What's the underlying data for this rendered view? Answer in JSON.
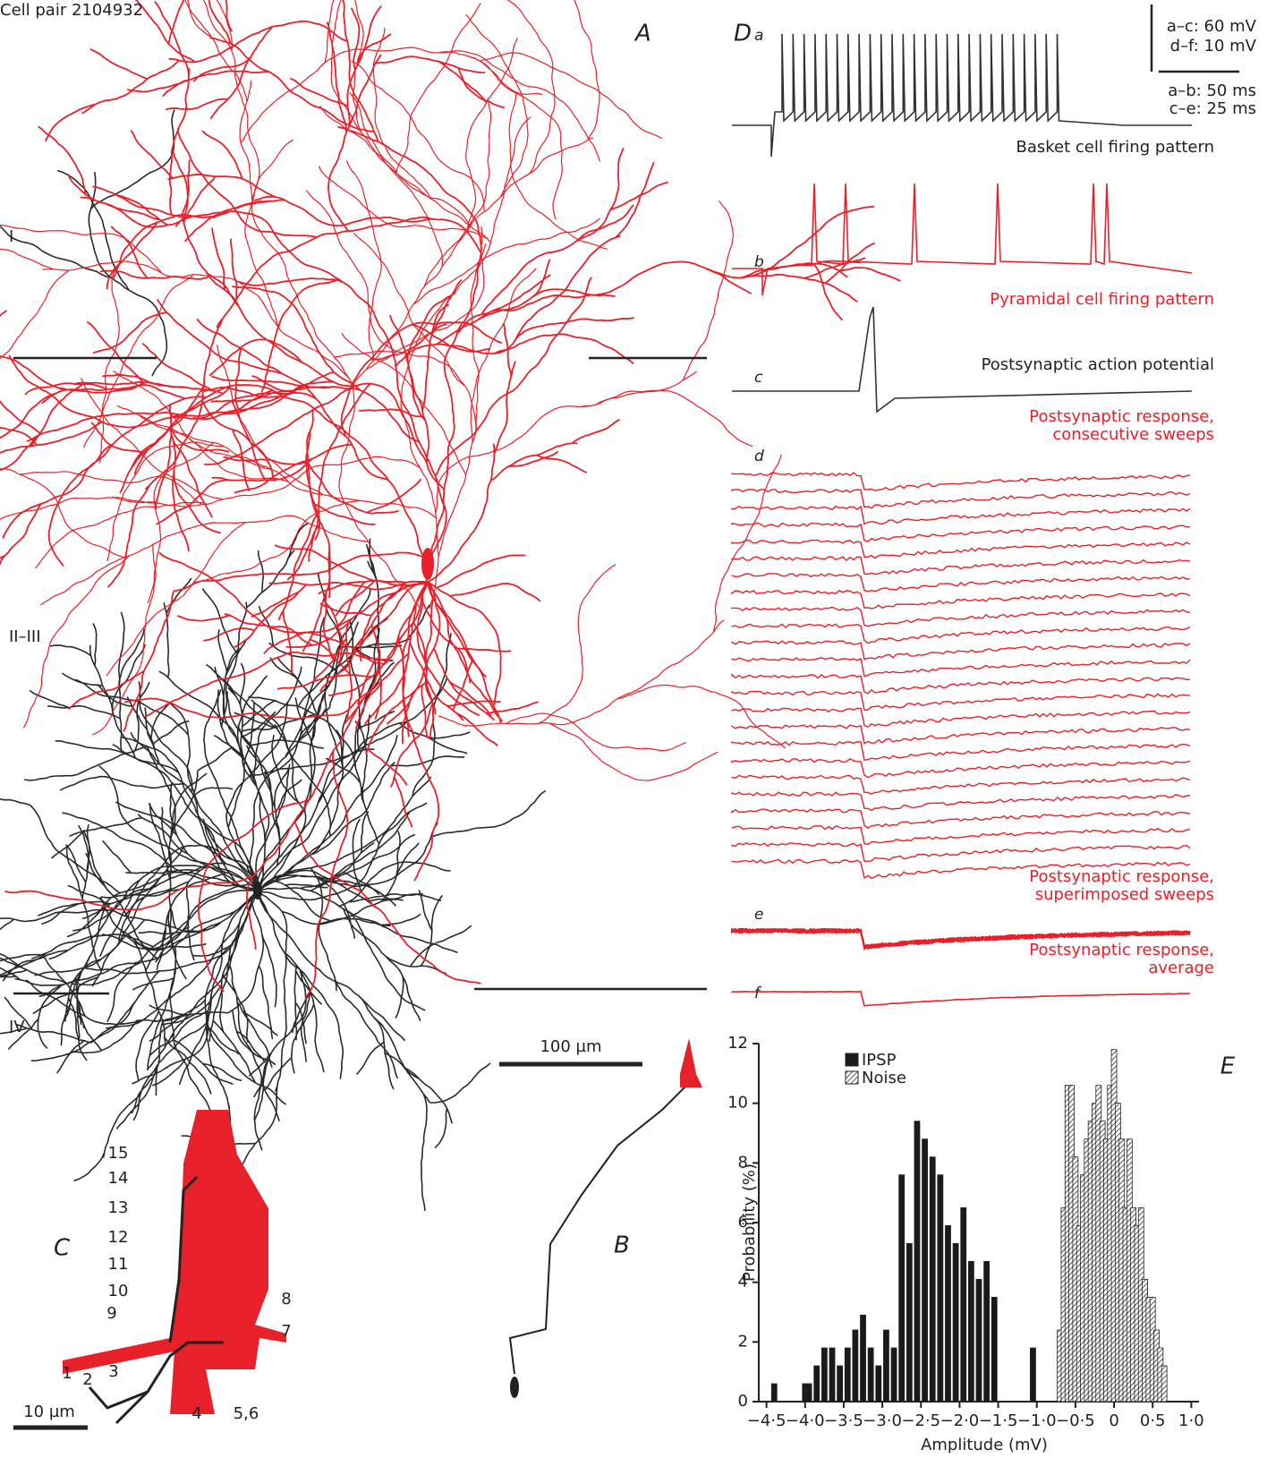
{
  "header": {
    "title": "Cell pair 2104932"
  },
  "panel_a": {
    "label": "A",
    "layers": [
      "I",
      "II–III",
      "IV"
    ],
    "scale": "100 µm"
  },
  "panel_b": {
    "label": "B"
  },
  "panel_c": {
    "label": "C",
    "scale": "10 µm",
    "contacts": [
      "1",
      "2",
      "3",
      "4",
      "5,6",
      "7",
      "8",
      "9",
      "10",
      "11",
      "12",
      "13",
      "14",
      "15"
    ]
  },
  "panel_d": {
    "label": "D",
    "scale": [
      "a–c: 60 mV",
      "d–f: 10 mV",
      "a–b: 50 ms",
      "c–e: 25 ms"
    ],
    "traces": [
      {
        "label": "a",
        "caption": [
          "Basket cell firing pattern"
        ]
      },
      {
        "label": "b",
        "caption": [
          "Pyramidal cell firing pattern"
        ]
      },
      {
        "label": "c",
        "caption": [
          "Postsynaptic action potential"
        ]
      },
      {
        "label": "d",
        "caption": [
          "Postsynaptic response,",
          "consecutive sweeps"
        ]
      },
      {
        "label": "e",
        "caption": [
          "Postsynaptic response,",
          "superimposed sweeps"
        ]
      },
      {
        "label": "f",
        "caption": [
          "Postsynaptic response,",
          "average"
        ]
      }
    ]
  },
  "chart_data": {
    "type": "bar",
    "label": "E",
    "x_label": "Amplitude (mV)",
    "y_label": "Probability (%)",
    "xlim": [
      -4.6,
      1.1
    ],
    "ylim": [
      0,
      12
    ],
    "xticks": [
      {
        "value": -4.5,
        "label": "−4·5"
      },
      {
        "value": -4.0,
        "label": "−4·0"
      },
      {
        "value": -3.5,
        "label": "−3·5"
      },
      {
        "value": -3.0,
        "label": "−3·0"
      },
      {
        "value": -2.5,
        "label": "−2·5"
      },
      {
        "value": -2.0,
        "label": "−2·0"
      },
      {
        "value": -1.5,
        "label": "−1·5"
      },
      {
        "value": -1.0,
        "label": "−1·0"
      },
      {
        "value": -0.5,
        "label": "−0·5"
      },
      0,
      {
        "value": 0.5,
        "label": "0·5"
      },
      {
        "value": 1.0,
        "label": "1·0"
      }
    ],
    "yticks": [
      0,
      2,
      4,
      6,
      8,
      10,
      12
    ],
    "series": [
      {
        "name": "IPSP",
        "color": "#1a1a1a",
        "x": [
          -4.4,
          -4.0,
          -3.95,
          -3.85,
          -3.75,
          -3.65,
          -3.55,
          -3.45,
          -3.35,
          -3.25,
          -3.15,
          -3.05,
          -2.95,
          -2.85,
          -2.75,
          -2.65,
          -2.55,
          -2.45,
          -2.35,
          -2.25,
          -2.15,
          -2.05,
          -1.95,
          -1.85,
          -1.75,
          -1.65,
          -1.55,
          -1.05
        ],
        "values": [
          0.6,
          0.6,
          0.6,
          1.2,
          1.8,
          1.8,
          1.2,
          1.8,
          2.4,
          2.9,
          1.8,
          1.2,
          2.4,
          1.8,
          7.6,
          5.3,
          9.4,
          8.8,
          8.2,
          7.6,
          5.9,
          5.3,
          6.5,
          4.7,
          4.1,
          4.7,
          3.5,
          1.8
        ]
      },
      {
        "name": "Noise",
        "color": "hatched",
        "x": [
          -0.7,
          -0.65,
          -0.6,
          -0.55,
          -0.5,
          -0.45,
          -0.4,
          -0.35,
          -0.3,
          -0.25,
          -0.2,
          -0.15,
          -0.1,
          -0.05,
          0,
          0.05,
          0.1,
          0.15,
          0.2,
          0.25,
          0.3,
          0.35,
          0.4,
          0.45,
          0.5,
          0.55,
          0.6,
          0.65
        ],
        "values": [
          2.4,
          6.5,
          10.6,
          10.6,
          8.2,
          5.9,
          7.6,
          8.8,
          9.4,
          10.0,
          10.6,
          9.4,
          8.8,
          10.6,
          11.8,
          10.0,
          8.8,
          6.5,
          8.8,
          6.5,
          5.9,
          6.5,
          4.1,
          3.5,
          3.5,
          2.4,
          1.8,
          1.2
        ]
      }
    ]
  }
}
